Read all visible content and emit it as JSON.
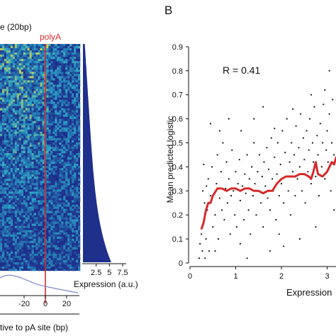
{
  "panel_b_label": "B",
  "chart_data": [
    {
      "type": "heatmap",
      "header_label": "e (20bp)",
      "marker_label": "polyA",
      "marker_x": 0,
      "xlabel": "tive to pA site (bp)",
      "xticks": [
        -20,
        0,
        20
      ],
      "xtick_labels": [
        "-20",
        "0",
        "20"
      ],
      "colors": {
        "low": "#1f2f8c",
        "mid": "#2aa7c9",
        "high": "#e8d83a",
        "marker": "#d62a2a",
        "density": "#7f89c8"
      }
    },
    {
      "type": "bar",
      "orientation": "horizontal",
      "xlabel": "Expression (a.u.)",
      "xticks": [
        2.5,
        5,
        7.5
      ],
      "xtick_labels": [
        "2.5",
        "5",
        "7.5"
      ],
      "xlim": [
        0,
        7.5
      ],
      "bar_color": "#1f2f8c"
    },
    {
      "type": "scatter",
      "annotation": "R = 0.41",
      "xlabel": "Expression",
      "ylabel": "Mean predicted logistic",
      "xlim": [
        0,
        3.4
      ],
      "ylim": [
        0,
        0.9
      ],
      "xticks": [
        0,
        1,
        2,
        3
      ],
      "xtick_labels": [
        "0",
        "1",
        "2",
        "3"
      ],
      "yticks": [
        0,
        0.1,
        0.2,
        0.3,
        0.4,
        0.5,
        0.6,
        0.7,
        0.8,
        0.9
      ],
      "ytick_labels": [
        "0",
        "0.1",
        "0.2",
        "0.3",
        "0.4",
        "0.5",
        "0.6",
        "0.7",
        "0.8",
        "0.9"
      ],
      "point_color": "#111111",
      "trend_color": "#d62a2a",
      "series": [
        {
          "values": [
            [
              0.2,
              0.02
            ],
            [
              0.22,
              0.08
            ],
            [
              0.25,
              0.12
            ],
            [
              0.27,
              0.05
            ],
            [
              0.3,
              0.18
            ],
            [
              0.32,
              0.25
            ],
            [
              0.28,
              0.3
            ],
            [
              0.35,
              0.1
            ],
            [
              0.38,
              0.22
            ],
            [
              0.4,
              0.35
            ],
            [
              0.42,
              0.05
            ],
            [
              0.45,
              0.28
            ],
            [
              0.48,
              0.4
            ],
            [
              0.5,
              0.15
            ],
            [
              0.3,
              0.41
            ],
            [
              0.33,
              0.02
            ],
            [
              0.36,
              0.32
            ],
            [
              0.55,
              0.2
            ],
            [
              0.58,
              0.33
            ],
            [
              0.6,
              0.45
            ],
            [
              0.62,
              0.1
            ],
            [
              0.65,
              0.27
            ],
            [
              0.68,
              0.38
            ],
            [
              0.7,
              0.22
            ],
            [
              0.72,
              0.5
            ],
            [
              0.75,
              0.18
            ],
            [
              0.78,
              0.31
            ],
            [
              0.8,
              0.42
            ],
            [
              0.82,
              0.25
            ],
            [
              0.85,
              0.35
            ],
            [
              0.88,
              0.12
            ],
            [
              0.9,
              0.28
            ],
            [
              0.92,
              0.47
            ],
            [
              0.95,
              0.3
            ],
            [
              0.98,
              0.2
            ],
            [
              1.0,
              0.38
            ],
            [
              1.02,
              0.15
            ],
            [
              1.05,
              0.33
            ],
            [
              1.08,
              0.43
            ],
            [
              1.1,
              0.26
            ],
            [
              1.12,
              0.55
            ],
            [
              1.15,
              0.32
            ],
            [
              1.18,
              0.18
            ],
            [
              1.2,
              0.37
            ],
            [
              1.22,
              0.29
            ],
            [
              1.25,
              0.45
            ],
            [
              1.28,
              0.22
            ],
            [
              1.3,
              0.35
            ],
            [
              1.32,
              0.12
            ],
            [
              1.35,
              0.4
            ],
            [
              1.38,
              0.28
            ],
            [
              1.4,
              0.5
            ],
            [
              1.42,
              0.33
            ],
            [
              1.45,
              0.2
            ],
            [
              1.48,
              0.38
            ],
            [
              1.5,
              0.3
            ],
            [
              1.52,
              0.45
            ],
            [
              1.55,
              0.25
            ],
            [
              1.58,
              0.36
            ],
            [
              1.6,
              0.15
            ],
            [
              1.62,
              0.42
            ],
            [
              1.65,
              0.32
            ],
            [
              1.68,
              0.48
            ],
            [
              1.7,
              0.27
            ],
            [
              1.72,
              0.39
            ],
            [
              1.75,
              0.22
            ],
            [
              1.78,
              0.52
            ],
            [
              1.8,
              0.35
            ],
            [
              1.82,
              0.3
            ],
            [
              1.85,
              0.44
            ],
            [
              1.88,
              0.18
            ],
            [
              1.9,
              0.37
            ],
            [
              1.92,
              0.5
            ],
            [
              1.95,
              0.28
            ],
            [
              1.98,
              0.41
            ],
            [
              2.0,
              0.33
            ],
            [
              2.02,
              0.55
            ],
            [
              2.05,
              0.25
            ],
            [
              2.08,
              0.46
            ],
            [
              2.1,
              0.36
            ],
            [
              2.12,
              0.6
            ],
            [
              2.15,
              0.3
            ],
            [
              2.18,
              0.42
            ],
            [
              2.2,
              0.2
            ],
            [
              2.22,
              0.5
            ],
            [
              2.25,
              0.38
            ],
            [
              2.28,
              0.45
            ],
            [
              2.3,
              0.28
            ],
            [
              2.32,
              0.57
            ],
            [
              2.35,
              0.35
            ],
            [
              2.38,
              0.48
            ],
            [
              2.4,
              0.4
            ],
            [
              2.42,
              0.62
            ],
            [
              2.45,
              0.3
            ],
            [
              2.48,
              0.52
            ],
            [
              2.5,
              0.43
            ],
            [
              2.52,
              0.25
            ],
            [
              2.55,
              0.55
            ],
            [
              2.58,
              0.38
            ],
            [
              2.6,
              0.47
            ],
            [
              2.62,
              0.6
            ],
            [
              2.65,
              0.33
            ],
            [
              2.68,
              0.5
            ],
            [
              2.7,
              0.42
            ],
            [
              2.72,
              0.65
            ],
            [
              2.75,
              0.36
            ],
            [
              2.78,
              0.53
            ],
            [
              2.8,
              0.45
            ],
            [
              2.82,
              0.28
            ],
            [
              2.85,
              0.58
            ],
            [
              2.88,
              0.4
            ],
            [
              2.9,
              0.5
            ],
            [
              2.92,
              0.66
            ],
            [
              2.95,
              0.35
            ],
            [
              2.98,
              0.47
            ],
            [
              3.0,
              0.55
            ],
            [
              3.02,
              0.42
            ],
            [
              3.05,
              0.62
            ],
            [
              3.08,
              0.3
            ],
            [
              3.1,
              0.5
            ],
            [
              3.12,
              0.68
            ],
            [
              3.15,
              0.45
            ],
            [
              3.18,
              0.58
            ],
            [
              3.2,
              0.38
            ],
            [
              3.22,
              0.65
            ],
            [
              3.25,
              0.5
            ],
            [
              3.28,
              0.72
            ],
            [
              3.3,
              0.44
            ],
            [
              3.32,
              0.6
            ],
            [
              1.4,
              0.6
            ],
            [
              1.85,
              0.56
            ],
            [
              2.65,
              0.7
            ],
            [
              1.25,
              0.02
            ],
            [
              2.05,
              0.07
            ],
            [
              0.65,
              0.55
            ],
            [
              0.85,
              0.6
            ],
            [
              3.05,
              0.8
            ],
            [
              2.95,
              0.72
            ],
            [
              3.25,
              0.77
            ],
            [
              1.1,
              0.08
            ],
            [
              2.4,
              0.1
            ],
            [
              0.45,
              0.58
            ],
            [
              1.6,
              0.65
            ],
            [
              2.25,
              0.64
            ],
            [
              1.95,
              0.12
            ],
            [
              2.75,
              0.15
            ],
            [
              3.15,
              0.22
            ],
            [
              0.55,
              0.05
            ],
            [
              1.75,
              0.05
            ]
          ]
        },
        {
          "values": [
            [
              0.25,
              0.14
            ],
            [
              0.3,
              0.17
            ],
            [
              0.35,
              0.22
            ],
            [
              0.4,
              0.25
            ],
            [
              0.45,
              0.25
            ],
            [
              0.5,
              0.28
            ],
            [
              0.6,
              0.31
            ],
            [
              0.7,
              0.31
            ],
            [
              0.8,
              0.3
            ],
            [
              0.9,
              0.31
            ],
            [
              1.0,
              0.31
            ],
            [
              1.1,
              0.3
            ],
            [
              1.2,
              0.31
            ],
            [
              1.3,
              0.31
            ],
            [
              1.4,
              0.3
            ],
            [
              1.5,
              0.3
            ],
            [
              1.6,
              0.29
            ],
            [
              1.7,
              0.3
            ],
            [
              1.8,
              0.3
            ],
            [
              1.9,
              0.33
            ],
            [
              2.0,
              0.35
            ],
            [
              2.1,
              0.36
            ],
            [
              2.2,
              0.36
            ],
            [
              2.3,
              0.36
            ],
            [
              2.4,
              0.37
            ],
            [
              2.5,
              0.37
            ],
            [
              2.6,
              0.36
            ],
            [
              2.65,
              0.35
            ],
            [
              2.7,
              0.38
            ],
            [
              2.75,
              0.42
            ],
            [
              2.8,
              0.37
            ],
            [
              2.9,
              0.36
            ],
            [
              3.0,
              0.38
            ],
            [
              3.05,
              0.4
            ],
            [
              3.1,
              0.42
            ],
            [
              3.15,
              0.41
            ],
            [
              3.2,
              0.44
            ],
            [
              3.3,
              0.46
            ]
          ]
        }
      ]
    }
  ]
}
